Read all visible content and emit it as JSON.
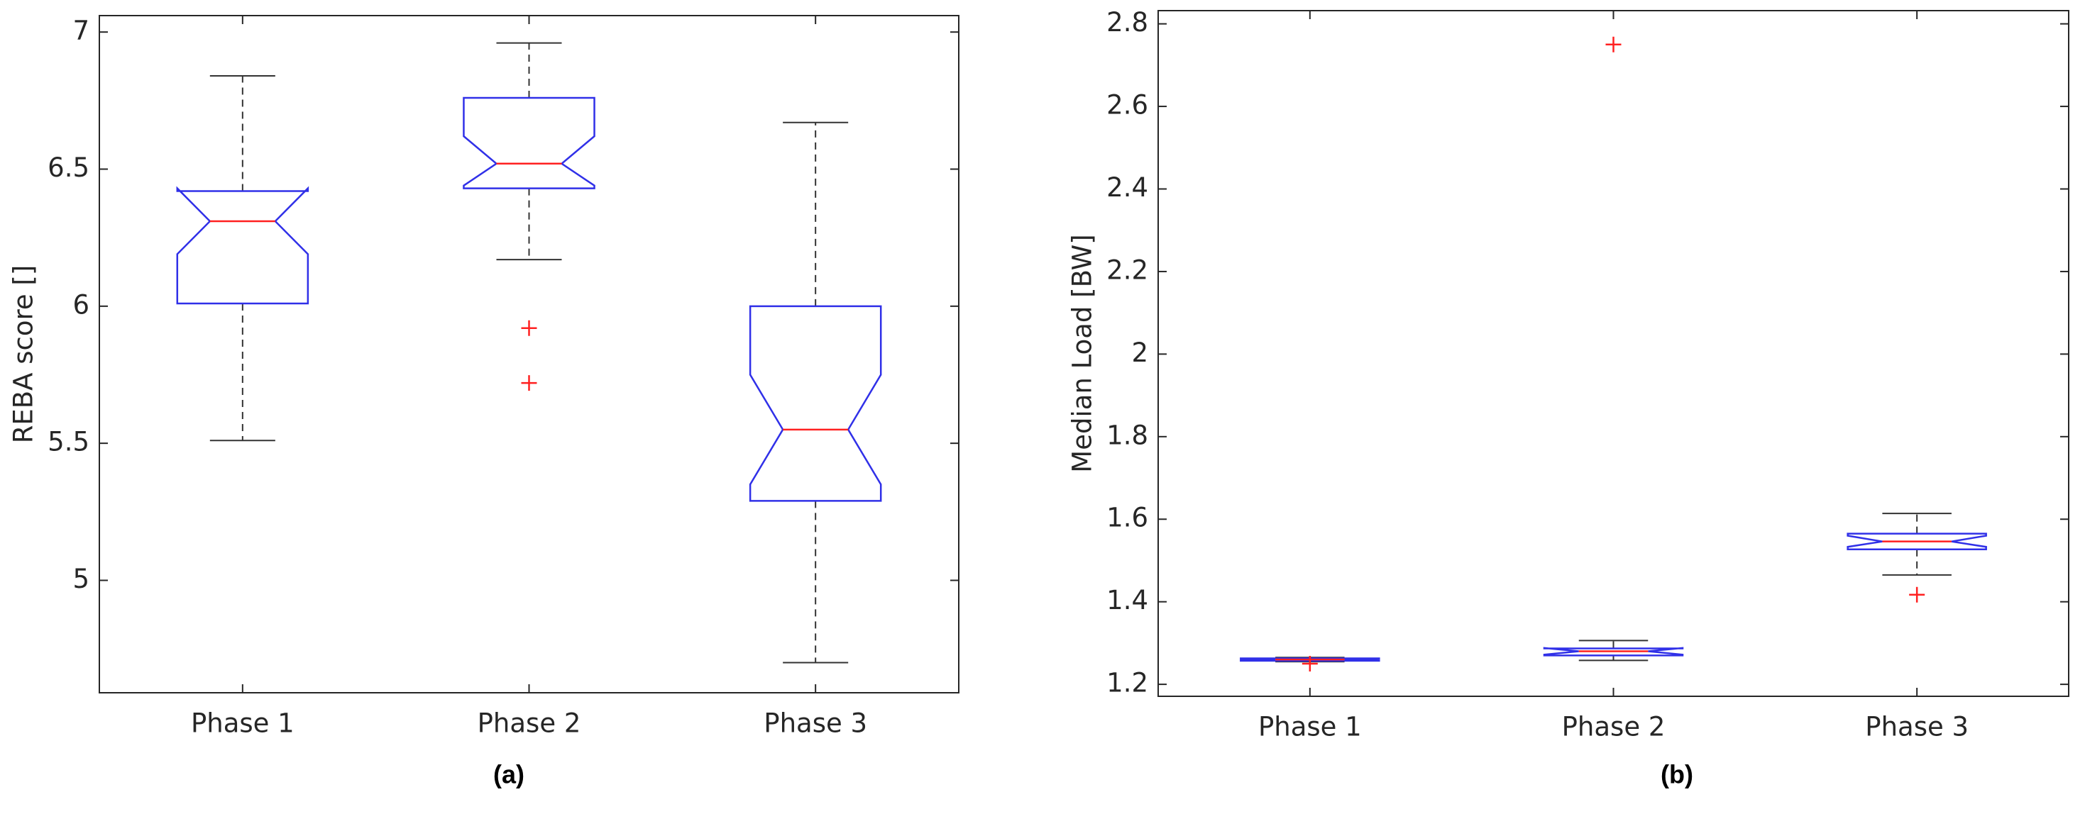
{
  "chart_data": [
    {
      "type": "boxplot",
      "caption": "(a)",
      "ylabel": "REBA score []",
      "categories": [
        "Phase 1",
        "Phase 2",
        "Phase 3"
      ],
      "boxes": [
        {
          "whislo": 5.51,
          "q1": 6.01,
          "notch_low": 6.19,
          "med": 6.31,
          "notch_high": 6.43,
          "q3": 6.42,
          "whishi": 6.84,
          "outliers": []
        },
        {
          "whislo": 6.17,
          "q1": 6.43,
          "notch_low": 6.44,
          "med": 6.52,
          "notch_high": 6.62,
          "q3": 6.76,
          "whishi": 6.96,
          "outliers": [
            5.92,
            5.72
          ]
        },
        {
          "whislo": 4.7,
          "q1": 5.29,
          "notch_low": 5.35,
          "med": 5.55,
          "notch_high": 5.75,
          "q3": 6.0,
          "whishi": 6.67,
          "outliers": []
        }
      ],
      "ylim": [
        4.59,
        7.06
      ],
      "yticks": [
        5,
        5.5,
        6,
        6.5,
        7
      ],
      "box_color": "#3030e8",
      "median_color": "#ff2020",
      "whisker_color": "#333333",
      "outlier_color": "#ff2020"
    },
    {
      "type": "boxplot",
      "caption": "(b)",
      "ylabel": "Median Load [BW]",
      "categories": [
        "Phase 1",
        "Phase 2",
        "Phase 3"
      ],
      "boxes": [
        {
          "whislo": 1.255,
          "q1": 1.257,
          "notch_low": 1.258,
          "med": 1.26,
          "notch_high": 1.262,
          "q3": 1.263,
          "whishi": 1.265,
          "outliers": [
            1.25
          ]
        },
        {
          "whislo": 1.258,
          "q1": 1.27,
          "notch_low": 1.272,
          "med": 1.28,
          "notch_high": 1.288,
          "q3": 1.287,
          "whishi": 1.306,
          "outliers": [
            2.75
          ]
        },
        {
          "whislo": 1.465,
          "q1": 1.527,
          "notch_low": 1.533,
          "med": 1.546,
          "notch_high": 1.56,
          "q3": 1.565,
          "whishi": 1.614,
          "outliers": [
            1.417
          ]
        }
      ],
      "ylim": [
        1.171,
        2.832
      ],
      "yticks": [
        1.2,
        1.4,
        1.6,
        1.8,
        2,
        2.2,
        2.4,
        2.6,
        2.8
      ],
      "box_color": "#3030e8",
      "median_color": "#ff2020",
      "whisker_color": "#333333",
      "outlier_color": "#ff2020"
    }
  ]
}
